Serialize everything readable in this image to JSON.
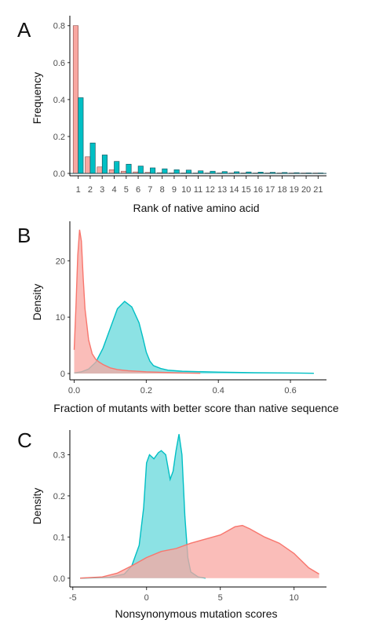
{
  "colors": {
    "red": "#F8766D",
    "teal": "#00BFC4",
    "red_fill": "#F8A7A1",
    "teal_fill": "#66D8DB"
  },
  "chart_data": [
    {
      "panel": "A",
      "type": "bar",
      "xlabel": "Rank of native amino acid",
      "ylabel": "Frequency",
      "ylim": [
        0,
        0.82
      ],
      "yticks": [
        0.0,
        0.2,
        0.4,
        0.6,
        0.8
      ],
      "ytick_labels": [
        "0.0",
        "0.2",
        "0.4",
        "0.6",
        "0.8"
      ],
      "categories": [
        "1",
        "2",
        "3",
        "4",
        "5",
        "6",
        "7",
        "8",
        "9",
        "10",
        "11",
        "12",
        "13",
        "14",
        "15",
        "16",
        "17",
        "18",
        "19",
        "20",
        "21"
      ],
      "series": [
        {
          "color": "red",
          "values": [
            0.8,
            0.09,
            0.035,
            0.02,
            0.012,
            0.008,
            0.006,
            0.004,
            0.003,
            0.002,
            0.002,
            0.001,
            0.001,
            0.001,
            0.001,
            0.001,
            0.0005,
            0.0005,
            0.0005,
            0.0005,
            0.0005
          ]
        },
        {
          "color": "teal",
          "values": [
            0.41,
            0.165,
            0.1,
            0.065,
            0.05,
            0.04,
            0.03,
            0.025,
            0.02,
            0.018,
            0.014,
            0.012,
            0.01,
            0.009,
            0.008,
            0.007,
            0.006,
            0.005,
            0.004,
            0.003,
            0.002
          ]
        }
      ]
    },
    {
      "panel": "B",
      "type": "area",
      "xlabel": "Fraction of mutants with better score than native sequence",
      "ylabel": "Density",
      "xlim": [
        -0.012,
        0.7
      ],
      "ylim": [
        0,
        27
      ],
      "xticks": [
        0.0,
        0.2,
        0.4,
        0.6
      ],
      "xtick_labels": [
        "0.0",
        "0.2",
        "0.4",
        "0.6"
      ],
      "yticks": [
        0,
        10,
        20
      ],
      "ytick_labels": [
        "0",
        "10",
        "20"
      ],
      "series": [
        {
          "color": "teal",
          "x": [
            0.0,
            0.02,
            0.04,
            0.06,
            0.08,
            0.1,
            0.12,
            0.14,
            0.16,
            0.18,
            0.19,
            0.2,
            0.21,
            0.22,
            0.24,
            0.26,
            0.3,
            0.4,
            0.5,
            0.6,
            0.665
          ],
          "y": [
            0.1,
            0.3,
            0.8,
            2.0,
            4.5,
            8.0,
            11.5,
            12.8,
            11.8,
            9.0,
            6.5,
            3.8,
            2.2,
            1.4,
            0.9,
            0.6,
            0.4,
            0.25,
            0.15,
            0.1,
            0.05
          ]
        },
        {
          "color": "red",
          "x": [
            0.0,
            0.005,
            0.01,
            0.015,
            0.02,
            0.025,
            0.03,
            0.04,
            0.05,
            0.06,
            0.07,
            0.08,
            0.1,
            0.12,
            0.15,
            0.2,
            0.25,
            0.3,
            0.35
          ],
          "y": [
            4.2,
            12.0,
            21.0,
            25.5,
            23.5,
            17.0,
            11.5,
            6.0,
            3.5,
            2.5,
            2.0,
            1.6,
            1.0,
            0.7,
            0.5,
            0.3,
            0.2,
            0.1,
            0.05
          ]
        }
      ]
    },
    {
      "panel": "C",
      "type": "area",
      "xlabel": "Nonsynonymous mutation scores",
      "ylabel": "Density",
      "xlim": [
        -5.2,
        12.2
      ],
      "ylim": [
        -0.01,
        0.36
      ],
      "xticks": [
        -5,
        0,
        5,
        10
      ],
      "xtick_labels": [
        "-5",
        "0",
        "5",
        "10"
      ],
      "yticks": [
        0.0,
        0.1,
        0.2,
        0.3
      ],
      "ytick_labels": [
        "0.0",
        "0.1",
        "0.2",
        "0.3"
      ],
      "series": [
        {
          "color": "teal",
          "x": [
            -4.5,
            -2.5,
            -1.5,
            -1.0,
            -0.5,
            -0.2,
            0.0,
            0.2,
            0.5,
            0.8,
            1.0,
            1.3,
            1.6,
            1.8,
            2.0,
            2.2,
            2.4,
            2.6,
            2.8,
            3.0,
            3.5,
            4.0
          ],
          "y": [
            0.0,
            0.002,
            0.01,
            0.03,
            0.08,
            0.17,
            0.28,
            0.3,
            0.29,
            0.305,
            0.31,
            0.3,
            0.24,
            0.26,
            0.31,
            0.35,
            0.3,
            0.15,
            0.05,
            0.015,
            0.003,
            0.0
          ]
        },
        {
          "color": "red",
          "x": [
            -4.5,
            -3.0,
            -2.0,
            -1.0,
            0.0,
            1.0,
            2.0,
            3.0,
            4.0,
            5.0,
            5.5,
            6.0,
            6.5,
            7.0,
            7.5,
            8.0,
            9.0,
            10.0,
            11.0,
            11.7
          ],
          "y": [
            0.0,
            0.003,
            0.012,
            0.03,
            0.05,
            0.065,
            0.072,
            0.085,
            0.095,
            0.105,
            0.115,
            0.125,
            0.128,
            0.12,
            0.11,
            0.1,
            0.085,
            0.06,
            0.025,
            0.01
          ]
        }
      ]
    }
  ]
}
